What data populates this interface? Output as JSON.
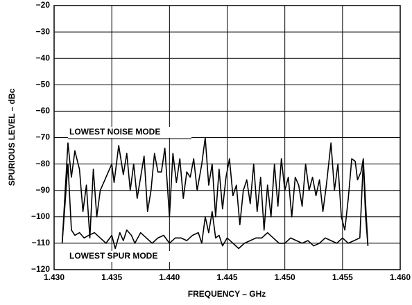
{
  "chart_data": {
    "type": "line",
    "x_label": "FREQUENCY – GHz",
    "y_label": "SPURIOUS LEVEL – dBc",
    "xlim": [
      1.43,
      1.46
    ],
    "xticks": [
      {
        "value": 1.43,
        "label": "1.430"
      },
      {
        "value": 1.435,
        "label": "1.435"
      },
      {
        "value": 1.44,
        "label": "1.440"
      },
      {
        "value": 1.445,
        "label": "1.445"
      },
      {
        "value": 1.45,
        "label": "1.450"
      },
      {
        "value": 1.455,
        "label": "1.455"
      },
      {
        "value": 1.46,
        "label": "1.460"
      }
    ],
    "ylim": [
      -120,
      -20
    ],
    "yticks": [
      {
        "value": -120,
        "label": "−120"
      },
      {
        "value": -110,
        "label": "−110"
      },
      {
        "value": -100,
        "label": "−100"
      },
      {
        "value": -90,
        "label": "−90"
      },
      {
        "value": -80,
        "label": "−80"
      },
      {
        "value": -70,
        "label": "−70"
      },
      {
        "value": -60,
        "label": "−60"
      },
      {
        "value": -50,
        "label": "−50"
      },
      {
        "value": -40,
        "label": "−40"
      },
      {
        "value": -30,
        "label": "−30"
      },
      {
        "value": -20,
        "label": "−20"
      }
    ],
    "grid": true,
    "series": [
      {
        "name": "LOWEST NOISE MODE",
        "color": "#000000",
        "x": [
          1.4307,
          1.4312,
          1.4315,
          1.4318,
          1.4322,
          1.4325,
          1.4328,
          1.4331,
          1.4334,
          1.4337,
          1.434,
          1.4345,
          1.435,
          1.4352,
          1.4356,
          1.436,
          1.4363,
          1.4366,
          1.4369,
          1.4372,
          1.4375,
          1.4378,
          1.4381,
          1.4384,
          1.4387,
          1.439,
          1.4393,
          1.4396,
          1.44,
          1.4403,
          1.4406,
          1.4409,
          1.4412,
          1.4415,
          1.4418,
          1.4421,
          1.4424,
          1.4428,
          1.4431,
          1.4434,
          1.4437,
          1.444,
          1.4443,
          1.4446,
          1.4449,
          1.4452,
          1.4455,
          1.4458,
          1.4461,
          1.4464,
          1.4467,
          1.447,
          1.4473,
          1.4476,
          1.4479,
          1.4482,
          1.4485,
          1.4488,
          1.4491,
          1.4494,
          1.4497,
          1.45,
          1.4503,
          1.4506,
          1.4509,
          1.4512,
          1.4515,
          1.4518,
          1.4521,
          1.4524,
          1.4527,
          1.453,
          1.4533,
          1.4536,
          1.454,
          1.4543,
          1.4546,
          1.4549,
          1.4552,
          1.4555,
          1.4558,
          1.4561,
          1.4563,
          1.4566,
          1.4568,
          1.457,
          1.4572
        ],
        "values": [
          -110,
          -72,
          -85,
          -75,
          -82,
          -98,
          -88,
          -108,
          -82,
          -100,
          -90,
          -85,
          -80,
          -87,
          -73,
          -84,
          -76,
          -90,
          -80,
          -93,
          -85,
          -77,
          -98,
          -90,
          -76,
          -83,
          -83,
          -74,
          -100,
          -76,
          -87,
          -78,
          -93,
          -83,
          -85,
          -78,
          -90,
          -80,
          -70,
          -88,
          -80,
          -100,
          -82,
          -97,
          -85,
          -78,
          -92,
          -88,
          -103,
          -90,
          -86,
          -95,
          -80,
          -98,
          -85,
          -105,
          -88,
          -100,
          -80,
          -96,
          -78,
          -90,
          -85,
          -100,
          -85,
          -88,
          -96,
          -80,
          -90,
          -85,
          -92,
          -86,
          -98,
          -88,
          -72,
          -90,
          -80,
          -100,
          -105,
          -93,
          -78,
          -79,
          -86,
          -83,
          -78,
          -95,
          -111
        ]
      },
      {
        "name": "LOWEST SPUR MODE",
        "color": "#000000",
        "x": [
          1.4307,
          1.4312,
          1.4315,
          1.4318,
          1.4322,
          1.4326,
          1.433,
          1.4335,
          1.434,
          1.4345,
          1.435,
          1.4353,
          1.4357,
          1.436,
          1.4363,
          1.4367,
          1.437,
          1.4375,
          1.438,
          1.4385,
          1.439,
          1.4395,
          1.44,
          1.4405,
          1.441,
          1.4415,
          1.442,
          1.4425,
          1.4428,
          1.4431,
          1.4434,
          1.4437,
          1.444,
          1.4443,
          1.4446,
          1.445,
          1.4455,
          1.446,
          1.4465,
          1.447,
          1.4475,
          1.448,
          1.4485,
          1.449,
          1.4495,
          1.45,
          1.4505,
          1.451,
          1.4515,
          1.452,
          1.4525,
          1.453,
          1.4535,
          1.454,
          1.4545,
          1.455,
          1.4555,
          1.456,
          1.4565,
          1.4568,
          1.457,
          1.4572
        ],
        "values": [
          -110,
          -80,
          -105,
          -107,
          -106,
          -108,
          -107,
          -106,
          -108,
          -110,
          -107,
          -112,
          -106,
          -109,
          -105,
          -107,
          -110,
          -106,
          -108,
          -110,
          -108,
          -107,
          -110,
          -108,
          -108,
          -109,
          -107,
          -106,
          -110,
          -100,
          -106,
          -98,
          -108,
          -107,
          -111,
          -108,
          -110,
          -112,
          -110,
          -109,
          -108,
          -108,
          -106,
          -108,
          -110,
          -110,
          -108,
          -109,
          -110,
          -109,
          -111,
          -110,
          -108,
          -109,
          -110,
          -108,
          -110,
          -109,
          -108,
          -79,
          -100,
          -111
        ]
      }
    ]
  }
}
